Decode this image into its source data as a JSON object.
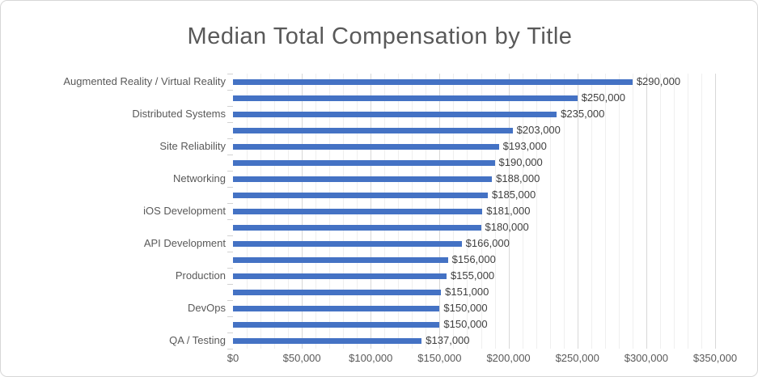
{
  "chart": {
    "background": "#FFFFFF",
    "border_color": "#D7D7D7"
  },
  "chart_data": {
    "type": "bar",
    "orientation": "horizontal",
    "title": "Median Total Compensation by Title",
    "title_color": "#595959",
    "bar_color": "#4472C4",
    "label_color": "#595959",
    "data_label_color": "#3F3F3F",
    "categories": [
      "Augmented Reality / Virtual Reality",
      "",
      "Distributed Systems",
      "",
      "Site Reliability",
      "",
      "Networking",
      "",
      "iOS Development",
      "",
      "API Development",
      "",
      "Production",
      "",
      "DevOps",
      "",
      "QA / Testing"
    ],
    "values": [
      290000,
      250000,
      235000,
      203000,
      193000,
      190000,
      188000,
      185000,
      181000,
      180000,
      166000,
      156000,
      155000,
      151000,
      150000,
      150000,
      137000
    ],
    "data_labels": [
      "$290,000",
      "$250,000",
      "$235,000",
      "$203,000",
      "$193,000",
      "$190,000",
      "$188,000",
      "$185,000",
      "$181,000",
      "$180,000",
      "$166,000",
      "$156,000",
      "$155,000",
      "$151,000",
      "$150,000",
      "$150,000",
      "$137,000"
    ],
    "visible_category_labels": [
      "Augmented Reality / Virtual Reality",
      "Distributed Systems",
      "Site Reliability",
      "Networking",
      "iOS Development",
      "API Development",
      "Production",
      "DevOps",
      "QA / Testing"
    ],
    "x_axis": {
      "tick_labels": [
        "$0",
        "$50,000",
        "$100,000",
        "$150,000",
        "$200,000",
        "$250,000",
        "$300,000",
        "$350,000"
      ],
      "min": 0,
      "max": 350000,
      "major_unit": 50000,
      "minor_unit": 10000
    },
    "grid": {
      "visible": true,
      "major_color": "#D8D8D8",
      "minor_color": "#EFEFEF",
      "tick_color": "#D2D2D2"
    },
    "legend": "none"
  }
}
